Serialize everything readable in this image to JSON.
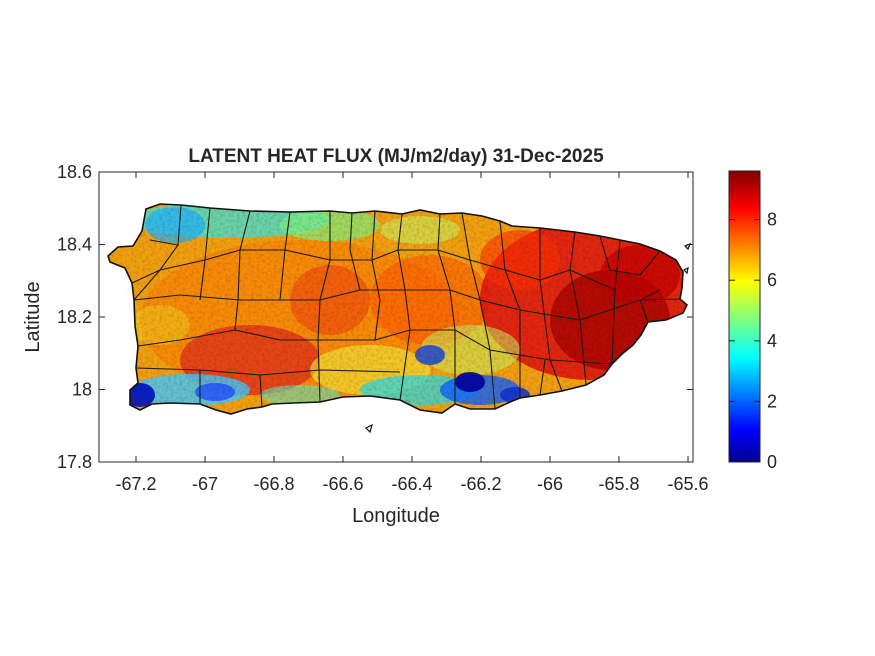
{
  "chart_data": {
    "type": "heatmap",
    "title": "LATENT HEAT FLUX (MJ/m2/day) 31-Dec-2025",
    "xlabel": "Longitude",
    "ylabel": "Latitude",
    "xlim": [
      -67.3,
      -65.58
    ],
    "ylim": [
      17.8,
      18.6
    ],
    "xticks": [
      -67.2,
      -67,
      -66.8,
      -66.6,
      -66.4,
      -66.2,
      -66,
      -65.8,
      -65.6
    ],
    "yticks": [
      17.8,
      18,
      18.2,
      18.4,
      18.6
    ],
    "colorbar": {
      "colormap": "jet",
      "range": [
        0,
        9.6
      ],
      "ticks": [
        0,
        2,
        4,
        6,
        8
      ]
    },
    "field_summary": {
      "dominant_range_west_central": [
        5,
        8
      ],
      "dominant_range_east": [
        8,
        9.6
      ],
      "low_value_zones": [
        {
          "region": "north-west coast",
          "approx_value": 3.5
        },
        {
          "region": "south coast near -66.25 to -66.1",
          "approx_value": 1.5
        },
        {
          "region": "south-west corner near -67.2",
          "approx_value": 1
        },
        {
          "region": "south-central near -66.45",
          "approx_value": 2
        }
      ]
    }
  }
}
